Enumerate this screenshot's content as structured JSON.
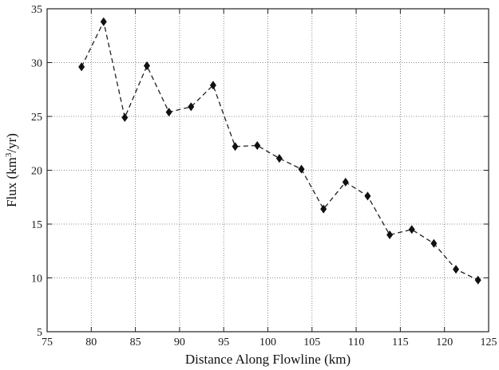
{
  "chart_data": {
    "type": "line",
    "title": "",
    "xlabel": "Distance Along Flowline (km)",
    "ylabel": "Flux (km³/yr)",
    "ylabel_parts": {
      "prefix": "Flux (km",
      "superscript": "3",
      "suffix": "/yr)"
    },
    "xlim": [
      75,
      125
    ],
    "ylim": [
      5,
      35
    ],
    "xticks": [
      75,
      80,
      85,
      90,
      95,
      100,
      105,
      110,
      115,
      120,
      125
    ],
    "yticks": [
      5,
      10,
      15,
      20,
      25,
      30,
      35
    ],
    "grid": true,
    "legend": "none",
    "line_style": "dashed",
    "marker": "diamond",
    "color": "#111111",
    "series": [
      {
        "x": [
          78.9,
          81.4,
          83.8,
          86.3,
          88.8,
          91.3,
          93.8,
          96.3,
          98.8,
          101.3,
          103.8,
          106.3,
          108.8,
          111.3,
          113.8,
          116.3,
          118.8,
          121.3,
          123.8
        ],
        "y": [
          29.6,
          33.8,
          24.9,
          29.7,
          25.4,
          25.9,
          27.9,
          22.2,
          22.3,
          21.1,
          20.1,
          16.4,
          18.9,
          17.6,
          14.0,
          14.5,
          13.2,
          10.8,
          9.8
        ]
      }
    ]
  }
}
